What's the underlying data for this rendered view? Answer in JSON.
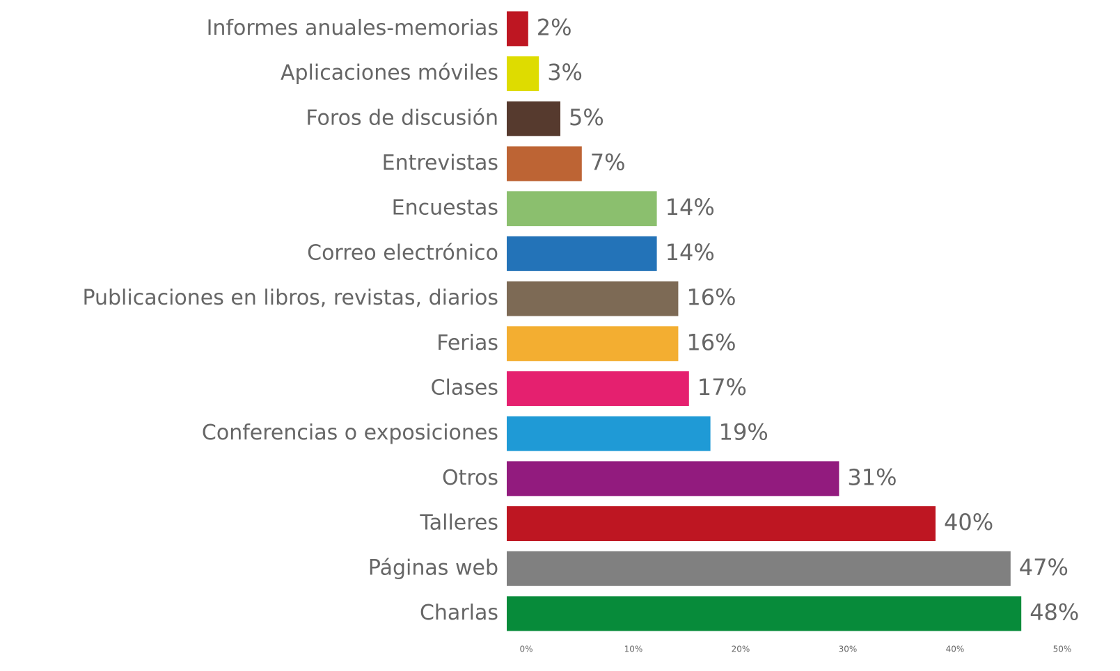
{
  "chart_data": {
    "type": "hbar",
    "categories": [
      "Informes anuales-memorias",
      "Aplicaciones móviles",
      "Foros de discusión",
      "Entrevistas",
      "Encuestas",
      "Correo electrónico",
      "Publicaciones en libros, revistas, diarios",
      "Ferias",
      "Clases",
      "Conferencias o exposiciones",
      "Otros",
      "Talleres",
      "Páginas web",
      "Charlas"
    ],
    "values": [
      2,
      3,
      5,
      7,
      14,
      14,
      16,
      16,
      17,
      19,
      31,
      40,
      47,
      48
    ],
    "value_labels": [
      "2%",
      "3%",
      "5%",
      "7%",
      "14%",
      "14%",
      "16%",
      "16%",
      "17%",
      "19%",
      "31%",
      "40%",
      "47%",
      "48%"
    ],
    "colors": [
      "#be1622",
      "#dedc00",
      "#563a2e",
      "#bd6434",
      "#8bbf6e",
      "#2373b8",
      "#7d6a55",
      "#f3ae31",
      "#e5206f",
      "#1f9ad6",
      "#921b7e",
      "#be1622",
      "#808080",
      "#078b3a"
    ],
    "xlim": [
      0,
      50
    ],
    "xticks": [
      {
        "value": 0,
        "label": "0%"
      },
      {
        "value": 10,
        "label": "10%"
      },
      {
        "value": 20,
        "label": "20%"
      },
      {
        "value": 30,
        "label": "30%"
      },
      {
        "value": 40,
        "label": "40%"
      },
      {
        "value": 50,
        "label": "50%"
      }
    ]
  }
}
